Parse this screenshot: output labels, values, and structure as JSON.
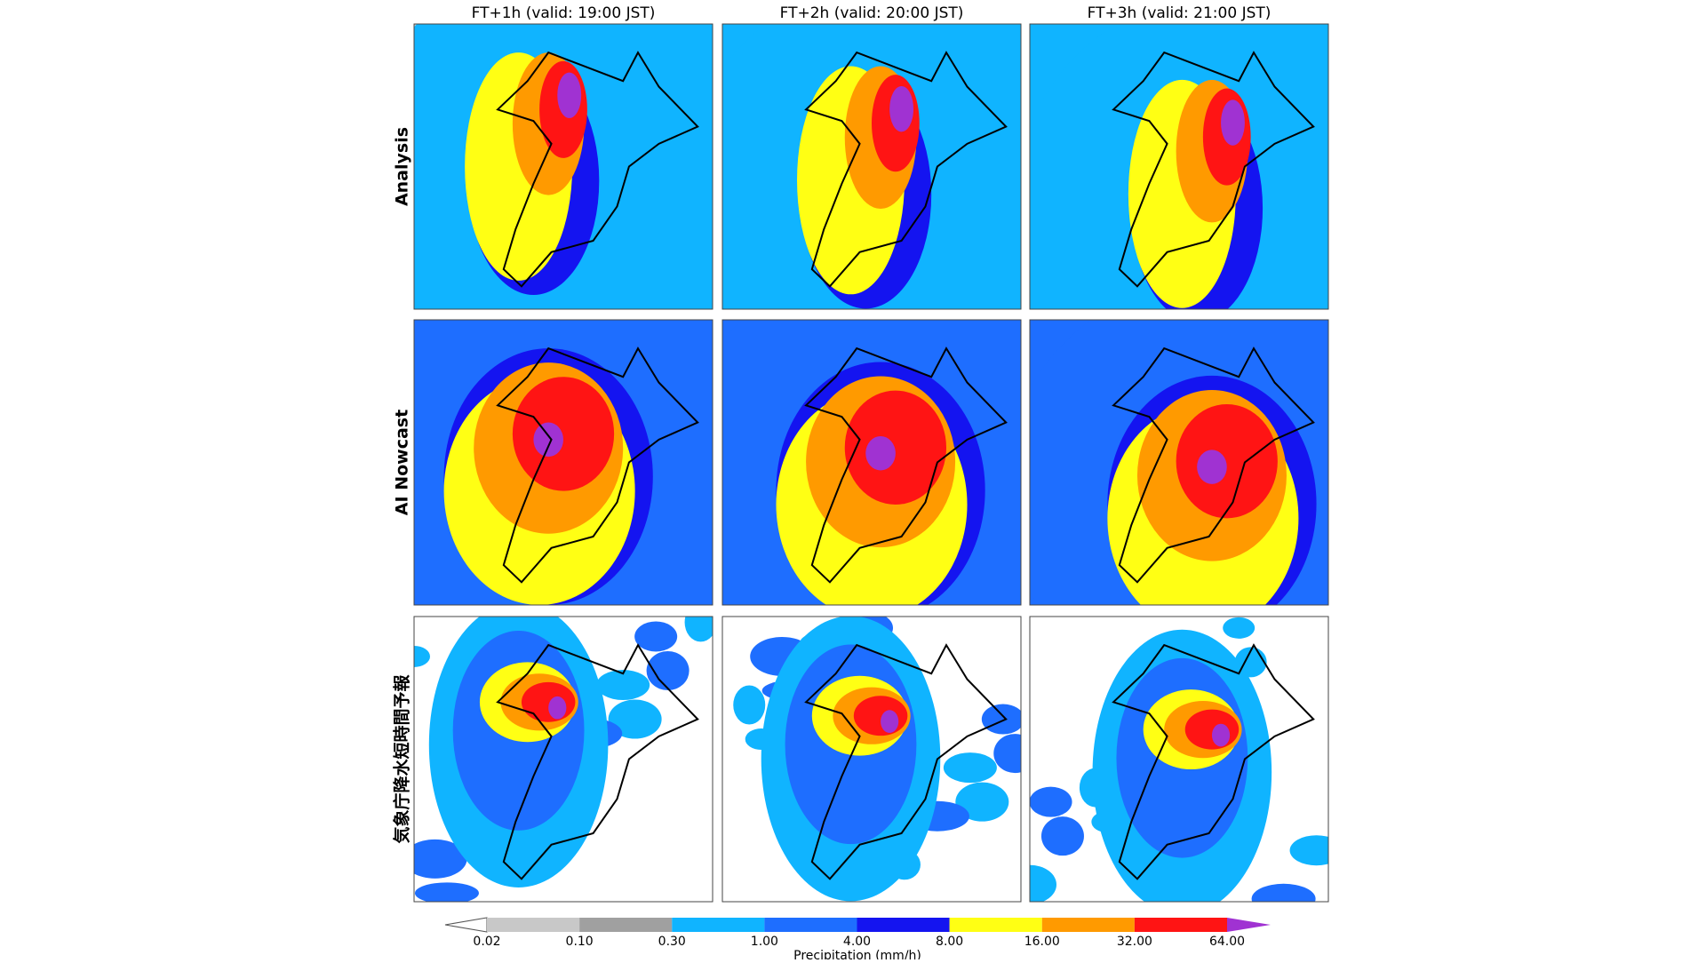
{
  "columns": [
    "FT+1h (valid: 19:00 JST)",
    "FT+2h (valid: 20:00 JST)",
    "FT+3h (valid: 21:00 JST)"
  ],
  "rows": [
    "Analysis",
    "AI Nowcast",
    "気象庁降水短時間予報"
  ],
  "colorbar": {
    "label": "Precipitation (mm/h)",
    "ticks": [
      "0.02",
      "0.10",
      "0.30",
      "1.00",
      "4.00",
      "8.00",
      "16.00",
      "32.00",
      "64.00"
    ],
    "colors": [
      "#ffffff",
      "#c8c8c8",
      "#a0a0a0",
      "#10b4ff",
      "#1e6eff",
      "#1414f0",
      "#ffff14",
      "#ff9a00",
      "#ff1414",
      "#a032d2"
    ]
  }
}
